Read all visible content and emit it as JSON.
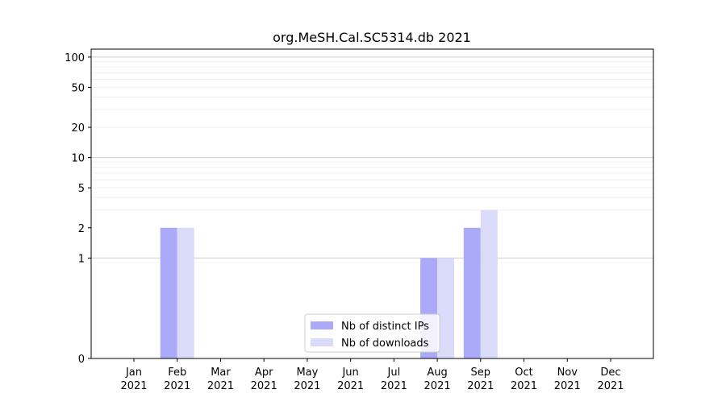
{
  "chart_data": {
    "type": "bar",
    "title": "org.MeSH.Cal.SC5314.db 2021",
    "xlabel": "",
    "ylabel": "",
    "yscale": "symlog",
    "ylim": [
      0,
      120
    ],
    "yticks": [
      0,
      1,
      2,
      5,
      10,
      20,
      50,
      100
    ],
    "grid": "horizontal",
    "legend_position": "bottom-center",
    "categories": [
      [
        "Jan",
        "2021"
      ],
      [
        "Feb",
        "2021"
      ],
      [
        "Mar",
        "2021"
      ],
      [
        "Apr",
        "2021"
      ],
      [
        "May",
        "2021"
      ],
      [
        "Jun",
        "2021"
      ],
      [
        "Jul",
        "2021"
      ],
      [
        "Aug",
        "2021"
      ],
      [
        "Sep",
        "2021"
      ],
      [
        "Oct",
        "2021"
      ],
      [
        "Nov",
        "2021"
      ],
      [
        "Dec",
        "2021"
      ]
    ],
    "series": [
      {
        "name": "Nb of distinct IPs",
        "color": "#aaaaf8",
        "values": [
          0,
          2,
          0,
          0,
          0,
          0,
          0,
          1,
          2,
          0,
          0,
          0
        ]
      },
      {
        "name": "Nb of downloads",
        "color": "#dadaf9",
        "values": [
          0,
          2,
          0,
          0,
          0,
          0,
          0,
          1,
          3,
          0,
          0,
          0
        ]
      }
    ]
  }
}
